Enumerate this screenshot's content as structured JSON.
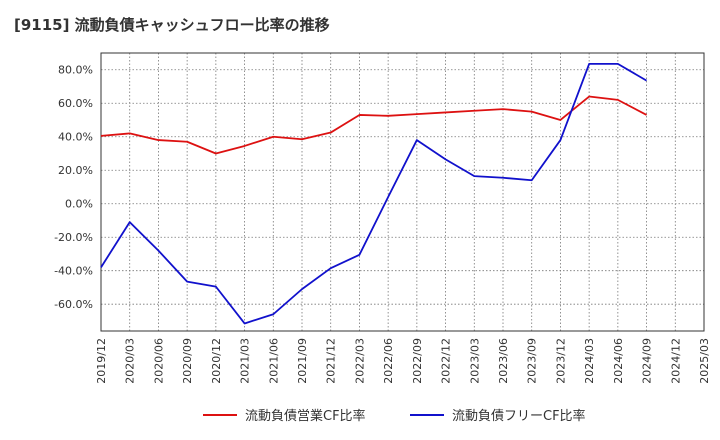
{
  "chart_data": {
    "type": "line",
    "title": "[9115]  流動負債キャッシュフロー比率の推移",
    "xlabel": "",
    "ylabel": "",
    "ylim": [
      -76,
      90
    ],
    "yticks": [
      -60,
      -40,
      -20,
      0,
      20,
      40,
      60,
      80
    ],
    "ytick_labels": [
      "-60.0%",
      "-40.0%",
      "-20.0%",
      "0.0%",
      "20.0%",
      "40.0%",
      "60.0%",
      "80.0%"
    ],
    "categories": [
      "2019/12",
      "2020/03",
      "2020/06",
      "2020/09",
      "2020/12",
      "2021/03",
      "2021/06",
      "2021/09",
      "2021/12",
      "2022/03",
      "2022/06",
      "2022/09",
      "2022/12",
      "2023/03",
      "2023/06",
      "2023/09",
      "2023/12",
      "2024/03",
      "2024/06",
      "2024/09",
      "2024/12",
      "2025/03"
    ],
    "grid": true,
    "legend_position": "bottom",
    "series": [
      {
        "name": "流動負債営業CF比率",
        "color": "#dd1111",
        "values": [
          40.5,
          42.0,
          38.0,
          37.0,
          30.0,
          34.5,
          40.0,
          38.5,
          42.5,
          53.0,
          52.5,
          53.5,
          54.5,
          55.5,
          56.5,
          55.0,
          50.0,
          64.0,
          62.0,
          53.0,
          null,
          null
        ]
      },
      {
        "name": "流動負債フリーCF比率",
        "color": "#1111cc",
        "values": [
          -38.0,
          -11.0,
          -28.0,
          -46.5,
          -49.5,
          -71.5,
          -66.0,
          -51.0,
          -38.5,
          -30.5,
          4.0,
          38.0,
          26.5,
          16.5,
          15.5,
          14.0,
          38.0,
          83.5,
          83.5,
          73.5,
          null,
          null
        ]
      }
    ]
  }
}
